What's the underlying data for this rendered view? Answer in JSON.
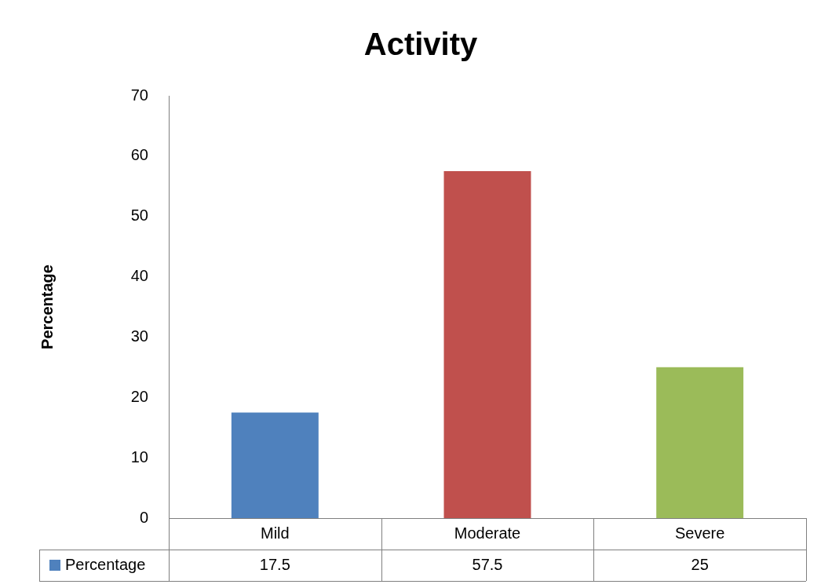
{
  "chart_data": {
    "type": "bar",
    "title": "Activity",
    "ylabel": "Percentage",
    "categories": [
      "Mild",
      "Moderate",
      "Severe"
    ],
    "series": [
      {
        "name": "Percentage",
        "color": "#4f81bd",
        "colors": [
          "#4f81bd",
          "#c0504d",
          "#9bbb59"
        ],
        "values": [
          17.5,
          57.5,
          25
        ]
      }
    ],
    "ylim": [
      0,
      70
    ],
    "yticks": [
      0,
      10,
      20,
      30,
      40,
      50,
      60,
      70
    ],
    "grid": false,
    "legend": "bottom",
    "data_labels": true
  }
}
